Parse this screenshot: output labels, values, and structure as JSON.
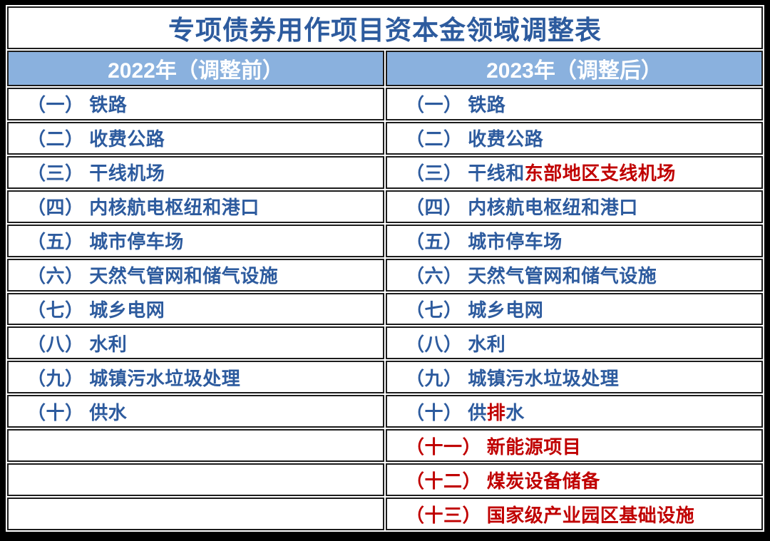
{
  "title": "专项债券用作项目资本金领域调整表",
  "header": {
    "left": "2022年（调整前）",
    "right": "2023年（调整后）"
  },
  "colors": {
    "text_blue": "#2D5B9E",
    "text_red": "#C00000",
    "header_bg": "#8AB1DE",
    "header_text": "#FFFFFF",
    "grid_line": "#1C1C1C",
    "frame": "#000000",
    "cell_bg": "#FFFFFF"
  },
  "rows": [
    {
      "left": [
        {
          "text": "（一） 铁路",
          "color": "blue"
        }
      ],
      "right": [
        {
          "text": "（一） 铁路",
          "color": "blue"
        }
      ]
    },
    {
      "left": [
        {
          "text": "（二） 收费公路",
          "color": "blue"
        }
      ],
      "right": [
        {
          "text": "（二） 收费公路",
          "color": "blue"
        }
      ]
    },
    {
      "left": [
        {
          "text": "（三） 干线机场",
          "color": "blue"
        }
      ],
      "right": [
        {
          "text": "（三） 干线和",
          "color": "blue"
        },
        {
          "text": "东部地区支线机场",
          "color": "red"
        }
      ]
    },
    {
      "left": [
        {
          "text": "（四） 内核航电枢纽和港口",
          "color": "blue"
        }
      ],
      "right": [
        {
          "text": "（四） 内核航电枢纽和港口",
          "color": "blue"
        }
      ]
    },
    {
      "left": [
        {
          "text": "（五） 城市停车场",
          "color": "blue"
        }
      ],
      "right": [
        {
          "text": "（五） 城市停车场",
          "color": "blue"
        }
      ]
    },
    {
      "left": [
        {
          "text": "（六） 天然气管网和储气设施",
          "color": "blue"
        }
      ],
      "right": [
        {
          "text": "（六） 天然气管网和储气设施",
          "color": "blue"
        }
      ]
    },
    {
      "left": [
        {
          "text": "（七） 城乡电网",
          "color": "blue"
        }
      ],
      "right": [
        {
          "text": "（七） 城乡电网",
          "color": "blue"
        }
      ]
    },
    {
      "left": [
        {
          "text": "（八） 水利",
          "color": "blue"
        }
      ],
      "right": [
        {
          "text": "（八） 水利",
          "color": "blue"
        }
      ]
    },
    {
      "left": [
        {
          "text": "（九） 城镇污水垃圾处理",
          "color": "blue"
        }
      ],
      "right": [
        {
          "text": "（九） 城镇污水垃圾处理",
          "color": "blue"
        }
      ]
    },
    {
      "left": [
        {
          "text": "（十） 供水",
          "color": "blue"
        }
      ],
      "right": [
        {
          "text": "（十） 供",
          "color": "blue"
        },
        {
          "text": "排",
          "color": "red"
        },
        {
          "text": "水",
          "color": "blue"
        }
      ]
    },
    {
      "left": [],
      "right": [
        {
          "text": "（十一） 新能源项目",
          "color": "red"
        }
      ]
    },
    {
      "left": [],
      "right": [
        {
          "text": "（十二） 煤炭设备储备",
          "color": "red"
        }
      ]
    },
    {
      "left": [],
      "right": [
        {
          "text": "（十三） 国家级产业园区基础设施",
          "color": "red"
        }
      ]
    }
  ]
}
